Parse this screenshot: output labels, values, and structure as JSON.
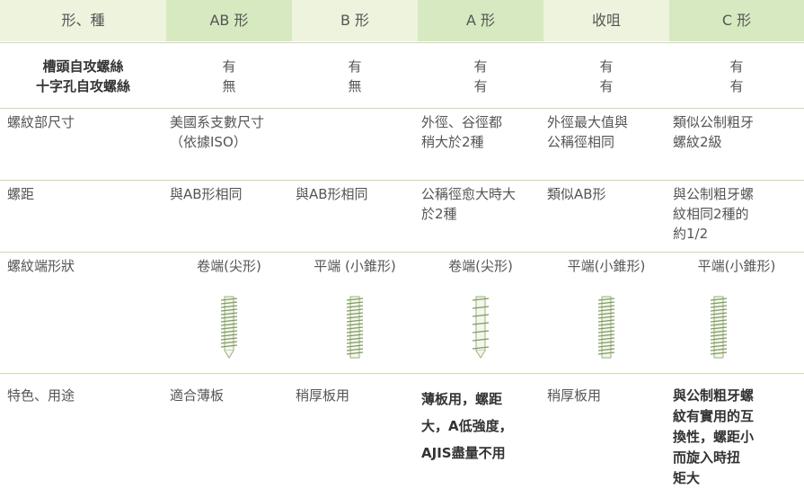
{
  "table": {
    "header": [
      "形、種",
      "AB 形",
      "B 形",
      "A 形",
      "收咀",
      "C 形"
    ],
    "rows": [
      [
        [
          "槽頭自攻螺絲",
          "十字孔自攻螺絲"
        ],
        [
          "有",
          "無"
        ],
        [
          "有",
          "無"
        ],
        [
          "有",
          "有"
        ],
        [
          "有",
          "有"
        ],
        [
          "有",
          "有"
        ]
      ],
      [
        [
          "螺紋部尺寸"
        ],
        [
          "美國系支數尺寸",
          "（依據ISO）"
        ],
        [],
        [
          "外徑、谷徑都",
          "稍大於2種"
        ],
        [
          "外徑最大值與",
          "公稱徑相同"
        ],
        [
          "類似公制粗牙",
          "螺紋2級"
        ]
      ],
      [
        [
          "螺距"
        ],
        [
          "與AB形相同"
        ],
        [
          "與AB形相同"
        ],
        [
          "公稱徑愈大時大",
          "於2種"
        ],
        [
          "類似AB形"
        ],
        [
          "與公制粗牙螺",
          "紋相同2種的",
          "約1/2"
        ]
      ],
      [
        [
          "螺紋端形狀"
        ],
        [
          "卷端(尖形)"
        ],
        [
          "平端 (小錐形)"
        ],
        [
          "卷端(尖形)"
        ],
        [
          "平端(小錐形)"
        ],
        [
          "平端(小錐形)"
        ]
      ],
      [
        [
          "特色、用途"
        ],
        [
          "適合薄板"
        ],
        [
          "稍厚板用"
        ],
        [
          "薄板用，螺距",
          "大，A低強度，",
          "AJIS盡量不用"
        ],
        [
          "稍厚板用"
        ],
        [
          "與公制粗牙螺",
          "紋有實用的互",
          "換性，螺距小",
          "而旋入時扭",
          "矩大"
        ]
      ]
    ]
  }
}
